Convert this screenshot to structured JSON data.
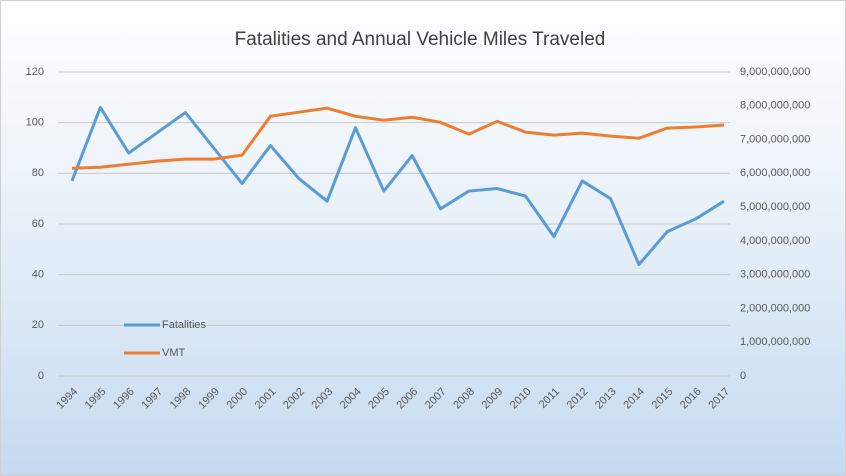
{
  "chart_data": {
    "type": "line",
    "title": "Fatalities and Annual Vehicle Miles Traveled",
    "categories": [
      "1994",
      "1995",
      "1996",
      "1997",
      "1998",
      "1999",
      "2000",
      "2001",
      "2002",
      "2003",
      "2004",
      "2005",
      "2006",
      "2007",
      "2008",
      "2009",
      "2010",
      "2011",
      "2012",
      "2013",
      "2014",
      "2015",
      "2016",
      "2017"
    ],
    "series": [
      {
        "name": "Fatalities",
        "color": "#5b9bd5",
        "values": [
          77,
          106,
          88,
          96,
          104,
          90,
          76,
          91,
          78,
          69,
          98,
          73,
          87,
          66,
          73,
          74,
          71,
          55,
          77,
          70,
          44,
          57,
          62,
          69
        ]
      },
      {
        "name": "VMT",
        "color": "#ed7d31",
        "axis": "y2",
        "values": [
          6150000000,
          6180000000,
          6270000000,
          6360000000,
          6420000000,
          6420000000,
          6540000000,
          7690000000,
          7810000000,
          7930000000,
          7690000000,
          7570000000,
          7660000000,
          7510000000,
          7160000000,
          7540000000,
          7220000000,
          7130000000,
          7190000000,
          7100000000,
          7040000000,
          7340000000,
          7370000000,
          7430000000
        ]
      }
    ],
    "ylim": [
      0,
      120
    ],
    "yticks": [
      0,
      20,
      40,
      60,
      80,
      100,
      120
    ],
    "y2lim": [
      0,
      9000000000
    ],
    "y2ticks": [
      0,
      {
        "value": 1000000000,
        "label": "1,000,000,000"
      },
      {
        "value": 2000000000,
        "label": "2,000,000,000"
      },
      {
        "value": 3000000000,
        "label": "3,000,000,000"
      },
      {
        "value": 4000000000,
        "label": "4,000,000,000"
      },
      {
        "value": 5000000000,
        "label": "5,000,000,000"
      },
      {
        "value": 6000000000,
        "label": "6,000,000,000"
      },
      {
        "value": 7000000000,
        "label": "7,000,000,000"
      },
      {
        "value": 8000000000,
        "label": "8,000,000,000"
      },
      {
        "value": 9000000000,
        "label": "9,000,000,000"
      }
    ],
    "grid": true,
    "legend": "lower left"
  }
}
